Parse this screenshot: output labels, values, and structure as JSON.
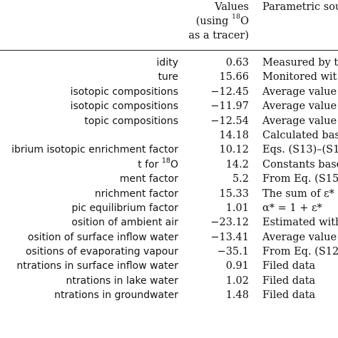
{
  "header": {
    "values_line1": "Values",
    "values_line2_pre": "(using ",
    "values_line2_sup": "18",
    "values_line2_post": "O",
    "values_line3": "as a tracer)",
    "source": "Parametric sou"
  },
  "rows": [
    {
      "name": "idity",
      "value": "0.63",
      "source": "Measured by th"
    },
    {
      "name": "ture",
      "value": "15.66",
      "source": "Monitored wit"
    },
    {
      "name": "isotopic compositions",
      "value": "−12.45",
      "source": "Average value"
    },
    {
      "name": "isotopic compositions",
      "value": "−11.97",
      "source": "Average value"
    },
    {
      "name": "topic compositions",
      "value": "−12.54",
      "source": "Average value"
    },
    {
      "name": "",
      "value": "14.18",
      "source": "Calculated bas"
    },
    {
      "name": "ibrium isotopic enrichment factor",
      "value": "10.12",
      "source": "Eqs. (S13)–(S1"
    },
    {
      "name": "t for ",
      "name_sup": "18",
      "name_post": "O",
      "value": "14.2",
      "source": "Constants base"
    },
    {
      "name": "ment factor",
      "value": "5.2",
      "source": "From Eq. (S15"
    },
    {
      "name": "nrichment factor",
      "value": "15.33",
      "source": "The sum of ε*"
    },
    {
      "name": "pic equilibrium factor",
      "value": "1.01",
      "source": "α* = 1 + ε*"
    },
    {
      "name": "osition of ambient air",
      "value": "−23.12",
      "source": "Estimated with"
    },
    {
      "name": "osition of surface inflow water",
      "value": "−13.41",
      "source": "Average value"
    },
    {
      "name": "ositions of evaporating vapour",
      "value": "−35.1",
      "source": "From Eq. (S12"
    },
    {
      "name": "ntrations in surface inflow water",
      "value": "0.91",
      "source": "Filed data"
    },
    {
      "name": "ntrations in lake water",
      "value": "1.02",
      "source": "Filed data"
    },
    {
      "name": "ntrations in groundwater",
      "value": "1.48",
      "source": "Filed data"
    }
  ]
}
